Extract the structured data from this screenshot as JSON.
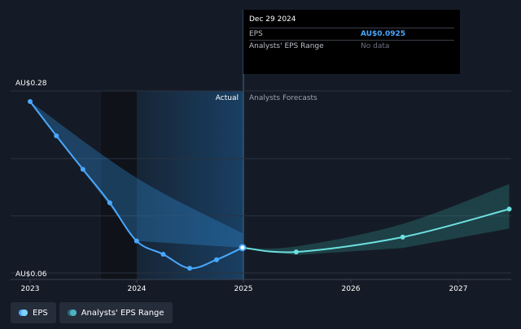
{
  "chart_data": {
    "type": "line",
    "y_min_label": "AU$0.06",
    "y_max_label": "AU$0.28",
    "ylim": [
      0.06,
      0.28
    ],
    "x_ticks": [
      "2023",
      "2024",
      "2025",
      "2026",
      "2027"
    ],
    "section_labels": {
      "actual": "Actual",
      "forecast": "Analysts Forecasts"
    },
    "series": [
      {
        "name": "EPS",
        "color": "#4aa8ff",
        "points": [
          {
            "x": "2023-01-01",
            "y": 0.28
          },
          {
            "x": "2023-04-01",
            "y": 0.236
          },
          {
            "x": "2023-07-01",
            "y": 0.193
          },
          {
            "x": "2023-10-01",
            "y": 0.15
          },
          {
            "x": "2024-01-01",
            "y": 0.101
          },
          {
            "x": "2024-04-01",
            "y": 0.084
          },
          {
            "x": "2024-07-01",
            "y": 0.066
          },
          {
            "x": "2024-10-01",
            "y": 0.077
          },
          {
            "x": "2024-12-29",
            "y": 0.0925
          }
        ]
      },
      {
        "name": "EPS forecast",
        "color": "#6de0e0",
        "points": [
          {
            "x": "2024-12-29",
            "y": 0.0925
          },
          {
            "x": "2025-07-01",
            "y": 0.087
          },
          {
            "x": "2026-07-01",
            "y": 0.106
          },
          {
            "x": "2027-07-01",
            "y": 0.142
          }
        ]
      }
    ],
    "actual_range": {
      "x": [
        "2023-01-01",
        "2024-01-01",
        "2024-12-29"
      ],
      "low": [
        0.28,
        0.101,
        0.0925
      ],
      "high": [
        0.28,
        0.182,
        0.111
      ]
    },
    "forecast_range": {
      "x": [
        "2024-12-29",
        "2025-07-01",
        "2026-07-01",
        "2027-07-01"
      ],
      "low": [
        0.0925,
        0.083,
        0.092,
        0.117
      ],
      "high": [
        0.0925,
        0.094,
        0.123,
        0.174
      ]
    }
  },
  "tooltip": {
    "date": "Dec 29 2024",
    "eps_label": "EPS",
    "eps_value": "AU$0.0925",
    "range_label": "Analysts' EPS Range",
    "range_value": "No data"
  },
  "legend": {
    "eps": "EPS",
    "range": "Analysts' EPS Range"
  },
  "colors": {
    "background": "#151b26",
    "eps_line": "#4aa8ff",
    "forecast_line": "#6de0e0"
  }
}
